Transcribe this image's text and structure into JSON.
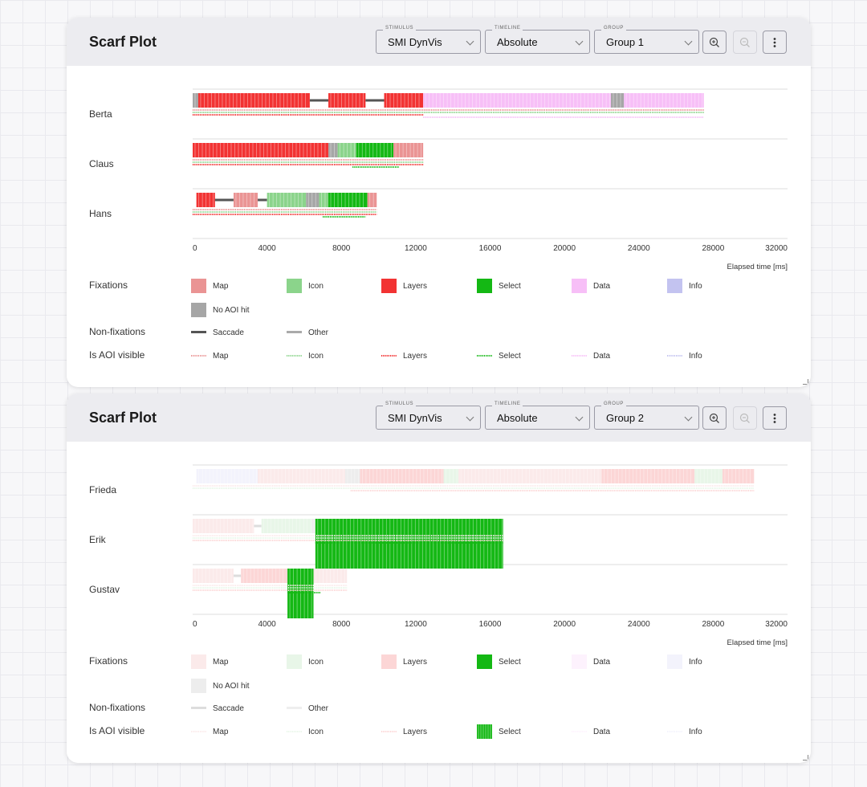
{
  "panels": [
    {
      "title": "Scarf Plot",
      "controls": {
        "stimulus": {
          "caption": "STIMULUS",
          "value": "SMI DynVis"
        },
        "timeline": {
          "caption": "TIMELINE",
          "value": "Absolute"
        },
        "group": {
          "caption": "GROUP",
          "value": "Group 1"
        },
        "zoom_in_icon": "zoom-in-icon",
        "zoom_out_icon": "zoom-out-icon",
        "menu_icon": "more-vertical-icon"
      }
    },
    {
      "title": "Scarf Plot",
      "controls": {
        "stimulus": {
          "caption": "STIMULUS",
          "value": "SMI DynVis"
        },
        "timeline": {
          "caption": "TIMELINE",
          "value": "Absolute"
        },
        "group": {
          "caption": "GROUP",
          "value": "Group 2"
        },
        "zoom_in_icon": "zoom-in-icon",
        "zoom_out_icon": "zoom-out-icon",
        "menu_icon": "more-vertical-icon"
      }
    }
  ],
  "chart_data": [
    {
      "type": "scarf",
      "xlabel": "Elapsed time [ms]",
      "xlim": [
        0,
        32000
      ],
      "xticks": [
        0,
        4000,
        8000,
        12000,
        16000,
        20000,
        24000,
        28000,
        32000
      ],
      "highlight": "all",
      "participants": [
        {
          "name": "Berta",
          "segments": [
            {
              "start": 0,
              "end": 300,
              "category": "No AOI hit"
            },
            {
              "start": 300,
              "end": 6300,
              "category": "Layers"
            },
            {
              "start": 6300,
              "end": 7300,
              "category": "Saccade"
            },
            {
              "start": 7300,
              "end": 9300,
              "category": "Layers"
            },
            {
              "start": 9300,
              "end": 10300,
              "category": "Saccade"
            },
            {
              "start": 10300,
              "end": 12400,
              "category": "Layers"
            },
            {
              "start": 12400,
              "end": 22500,
              "category": "Data"
            },
            {
              "start": 22500,
              "end": 23200,
              "category": "No AOI hit"
            },
            {
              "start": 23200,
              "end": 27500,
              "category": "Data"
            }
          ],
          "visibility": [
            {
              "aoi": "Map",
              "start": 0,
              "end": 27500
            },
            {
              "aoi": "Icon",
              "start": 0,
              "end": 27500
            },
            {
              "aoi": "Layers",
              "start": 0,
              "end": 12400
            },
            {
              "aoi": "Data",
              "start": 12400,
              "end": 27500
            }
          ]
        },
        {
          "name": "Claus",
          "segments": [
            {
              "start": 0,
              "end": 7300,
              "category": "Layers"
            },
            {
              "start": 7300,
              "end": 7800,
              "category": "No AOI hit"
            },
            {
              "start": 7800,
              "end": 8800,
              "category": "Icon"
            },
            {
              "start": 8800,
              "end": 10800,
              "category": "Select"
            },
            {
              "start": 10800,
              "end": 12400,
              "category": "Map"
            }
          ],
          "visibility": [
            {
              "aoi": "Map",
              "start": 0,
              "end": 12400
            },
            {
              "aoi": "Icon",
              "start": 0,
              "end": 12400
            },
            {
              "aoi": "Layers",
              "start": 0,
              "end": 12400
            },
            {
              "aoi": "Select",
              "start": 8600,
              "end": 11100
            }
          ]
        },
        {
          "name": "Hans",
          "segments": [
            {
              "start": 200,
              "end": 1200,
              "category": "Layers"
            },
            {
              "start": 1200,
              "end": 2200,
              "category": "Saccade"
            },
            {
              "start": 2200,
              "end": 3500,
              "category": "Map"
            },
            {
              "start": 3500,
              "end": 4000,
              "category": "Saccade"
            },
            {
              "start": 4000,
              "end": 6100,
              "category": "Icon"
            },
            {
              "start": 6100,
              "end": 6800,
              "category": "No AOI hit"
            },
            {
              "start": 6800,
              "end": 7300,
              "category": "Icon"
            },
            {
              "start": 7300,
              "end": 9400,
              "category": "Select"
            },
            {
              "start": 9400,
              "end": 9900,
              "category": "Map"
            }
          ],
          "visibility": [
            {
              "aoi": "Map",
              "start": 0,
              "end": 9900
            },
            {
              "aoi": "Icon",
              "start": 0,
              "end": 9900
            },
            {
              "aoi": "Layers",
              "start": 0,
              "end": 9900
            },
            {
              "aoi": "Select",
              "start": 7000,
              "end": 9300
            }
          ]
        }
      ],
      "legend": {
        "fixations_label": "Fixations",
        "nonfixations_label": "Non-fixations",
        "visibility_label": "Is AOI visible",
        "fixations": [
          {
            "label": "Map",
            "color": "#ea9494"
          },
          {
            "label": "Icon",
            "color": "#8bd48b"
          },
          {
            "label": "Layers",
            "color": "#f23333"
          },
          {
            "label": "Select",
            "color": "#14b814"
          },
          {
            "label": "Data",
            "color": "#f7bff7"
          },
          {
            "label": "Info",
            "color": "#c3c3f0"
          },
          {
            "label": "No AOI hit",
            "color": "#a6a6a6"
          }
        ],
        "nonfixations": [
          {
            "label": "Saccade",
            "color": "#555555"
          },
          {
            "label": "Other",
            "color": "#aaaaaa"
          }
        ],
        "visibility": [
          {
            "label": "Map",
            "color": "#ea9494"
          },
          {
            "label": "Icon",
            "color": "#8bd48b"
          },
          {
            "label": "Layers",
            "color": "#f23333"
          },
          {
            "label": "Select",
            "color": "#14b814"
          },
          {
            "label": "Data",
            "color": "#f7bff7"
          },
          {
            "label": "Info",
            "color": "#c3c3f0"
          }
        ]
      }
    },
    {
      "type": "scarf",
      "xlabel": "Elapsed time [ms]",
      "xlim": [
        0,
        32000
      ],
      "xticks": [
        0,
        4000,
        8000,
        12000,
        16000,
        20000,
        24000,
        28000,
        32000
      ],
      "highlight": "Select",
      "participants": [
        {
          "name": "Frieda",
          "segments": [
            {
              "start": 200,
              "end": 3500,
              "category": "Info"
            },
            {
              "start": 3500,
              "end": 8200,
              "category": "Map"
            },
            {
              "start": 8200,
              "end": 9000,
              "category": "No AOI hit"
            },
            {
              "start": 9000,
              "end": 13500,
              "category": "Layers"
            },
            {
              "start": 13500,
              "end": 14300,
              "category": "Icon"
            },
            {
              "start": 14300,
              "end": 22000,
              "category": "Map"
            },
            {
              "start": 22000,
              "end": 27000,
              "category": "Layers"
            },
            {
              "start": 27000,
              "end": 28500,
              "category": "Icon"
            },
            {
              "start": 28500,
              "end": 30200,
              "category": "Layers"
            }
          ],
          "visibility": [
            {
              "aoi": "Map",
              "start": 0,
              "end": 30200
            },
            {
              "aoi": "Icon",
              "start": 0,
              "end": 30200
            },
            {
              "aoi": "Layers",
              "start": 8500,
              "end": 30200
            }
          ]
        },
        {
          "name": "Erik",
          "segments": [
            {
              "start": 0,
              "end": 3300,
              "category": "Map"
            },
            {
              "start": 3300,
              "end": 3700,
              "category": "Saccade"
            },
            {
              "start": 3700,
              "end": 6400,
              "category": "Icon"
            },
            {
              "start": 6400,
              "end": 6600,
              "category": "No AOI hit"
            },
            {
              "start": 6600,
              "end": 16700,
              "category": "Select"
            }
          ],
          "visibility": [
            {
              "aoi": "Map",
              "start": 0,
              "end": 16700
            },
            {
              "aoi": "Icon",
              "start": 0,
              "end": 16700
            },
            {
              "aoi": "Layers",
              "start": 0,
              "end": 16700
            },
            {
              "aoi": "Select",
              "start": 6600,
              "end": 16700
            }
          ]
        },
        {
          "name": "Gustav",
          "segments": [
            {
              "start": 0,
              "end": 2200,
              "category": "Map"
            },
            {
              "start": 2200,
              "end": 2600,
              "category": "Saccade"
            },
            {
              "start": 2600,
              "end": 5100,
              "category": "Layers"
            },
            {
              "start": 5100,
              "end": 6500,
              "category": "Select"
            },
            {
              "start": 6500,
              "end": 8300,
              "category": "Map"
            }
          ],
          "visibility": [
            {
              "aoi": "Map",
              "start": 0,
              "end": 8300
            },
            {
              "aoi": "Icon",
              "start": 0,
              "end": 8300
            },
            {
              "aoi": "Layers",
              "start": 0,
              "end": 8300
            },
            {
              "aoi": "Select",
              "start": 5100,
              "end": 6900
            }
          ]
        }
      ],
      "legend": {
        "fixations_label": "Fixations",
        "nonfixations_label": "Non-fixations",
        "visibility_label": "Is AOI visible",
        "fixations": [
          {
            "label": "Map",
            "color": "#ea9494"
          },
          {
            "label": "Icon",
            "color": "#8bd48b"
          },
          {
            "label": "Layers",
            "color": "#f23333"
          },
          {
            "label": "Select",
            "color": "#14b814"
          },
          {
            "label": "Data",
            "color": "#f7bff7"
          },
          {
            "label": "Info",
            "color": "#c3c3f0"
          },
          {
            "label": "No AOI hit",
            "color": "#a6a6a6"
          }
        ],
        "nonfixations": [
          {
            "label": "Saccade",
            "color": "#555555"
          },
          {
            "label": "Other",
            "color": "#aaaaaa"
          }
        ],
        "visibility": [
          {
            "label": "Map",
            "color": "#ea9494"
          },
          {
            "label": "Icon",
            "color": "#8bd48b"
          },
          {
            "label": "Layers",
            "color": "#f23333"
          },
          {
            "label": "Select",
            "color": "#14b814"
          },
          {
            "label": "Data",
            "color": "#f7bff7"
          },
          {
            "label": "Info",
            "color": "#c3c3f0"
          }
        ]
      }
    }
  ]
}
